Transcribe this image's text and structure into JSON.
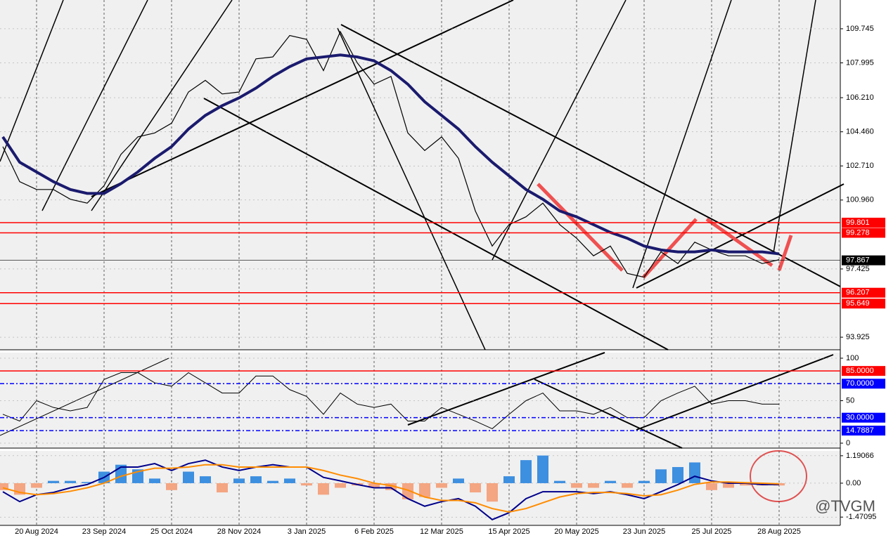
{
  "watermark": "@TVGM",
  "chart_data": [
    {
      "type": "line",
      "categories": [
        null,
        null,
        "20 Aug 2024",
        null,
        null,
        null,
        "23 Sep 2024",
        null,
        null,
        null,
        "25 Oct 2024",
        null,
        null,
        null,
        "28 Nov 2024",
        null,
        null,
        null,
        "3 Jan 2025",
        null,
        null,
        null,
        "6 Feb 2025",
        null,
        null,
        null,
        "12 Mar 2025",
        null,
        null,
        null,
        "15 Apr 2025",
        null,
        null,
        null,
        "20 May 2025",
        null,
        null,
        null,
        "23 Jun 2025",
        null,
        null,
        null,
        "25 Jul 2025",
        null,
        null,
        null,
        "28 Aug 2025"
      ],
      "series": [
        {
          "color": "#000000",
          "width": 1.2,
          "values": [
            103.7,
            101.9,
            101.5,
            101.5,
            101.0,
            100.8,
            101.7,
            103.3,
            104.2,
            104.4,
            104.9,
            106.5,
            107.1,
            106.4,
            106.5,
            108.2,
            108.3,
            109.4,
            109.2,
            107.6,
            109.6,
            108.0,
            106.9,
            107.3,
            104.4,
            103.5,
            104.2,
            103.1,
            100.4,
            98.6,
            99.7,
            100.1,
            100.8,
            99.7,
            99.0,
            98.1,
            98.6,
            97.2,
            97.0,
            98.3,
            97.7,
            98.8,
            98.4,
            98.1,
            98.1,
            97.7,
            97.9
          ]
        },
        {
          "color": "#1a1a6e",
          "width": 4,
          "values": [
            104.2,
            102.9,
            102.4,
            101.9,
            101.5,
            101.3,
            101.3,
            101.8,
            102.4,
            103.1,
            103.7,
            104.6,
            105.3,
            105.8,
            106.2,
            106.7,
            107.3,
            107.8,
            108.2,
            108.3,
            108.4,
            108.3,
            108.1,
            107.6,
            106.9,
            106.0,
            105.3,
            104.6,
            103.7,
            102.9,
            102.2,
            101.5,
            101.0,
            100.4,
            100.1,
            99.7,
            99.3,
            99.0,
            98.6,
            98.4,
            98.3,
            98.3,
            98.4,
            98.3,
            98.3,
            98.3,
            98.2
          ]
        }
      ],
      "ylim": [
        93.28,
        111.22
      ],
      "yticks": [
        109.745,
        107.995,
        {
          "value": 106.21,
          "label": "106.210"
        },
        {
          "value": 104.46,
          "label": "104.460"
        },
        {
          "value": 102.71,
          "label": "102.710"
        },
        {
          "value": 100.96,
          "label": "100.960"
        },
        97.425,
        93.925
      ],
      "levels": [
        {
          "value": 99.801,
          "color": "#ff0000"
        },
        {
          "value": 99.278,
          "color": "#ff0000"
        },
        {
          "value": 97.867,
          "color": "#000000"
        },
        {
          "value": 96.207,
          "color": "#ff0000"
        },
        {
          "value": 95.649,
          "color": "#ff0000"
        }
      ],
      "grid": true
    },
    {
      "type": "line",
      "series": [
        {
          "color": "#000000",
          "width": 1,
          "values": [
            34,
            26,
            50,
            42,
            38,
            42,
            75,
            83,
            83,
            71,
            67,
            83,
            71,
            59,
            59,
            79,
            79,
            63,
            55,
            34,
            59,
            46,
            42,
            46,
            26,
            26,
            42,
            34,
            26,
            17,
            34,
            50,
            59,
            38,
            38,
            34,
            42,
            30,
            30,
            50,
            59,
            67,
            46,
            50,
            50,
            46,
            46
          ]
        }
      ],
      "ylim": [
        -5.8,
        106.6
      ],
      "yticks": [
        100,
        50,
        0
      ],
      "levels": [
        {
          "value": 85,
          "label": "85.0000",
          "color": "#ff0000"
        },
        {
          "value": 70,
          "label": "70.0000",
          "color": "#0000ff"
        },
        {
          "value": 30,
          "label": "30.0000",
          "color": "#0000ff"
        },
        {
          "value": 14.7887,
          "color": "#0000ff"
        }
      ],
      "grid": true
    },
    {
      "type": "bar",
      "series": [
        {
          "type": "bar",
          "color": "#3d8fe0",
          "negative_color": "#f4a582",
          "values": [
            -0.3,
            -0.5,
            -0.2,
            0.1,
            0.1,
            0.05,
            0.5,
            0.8,
            0.6,
            0.2,
            -0.3,
            0.5,
            0.3,
            -0.4,
            0.2,
            0.3,
            0.1,
            0.2,
            -0.1,
            -0.5,
            -0.2,
            -0.1,
            -0.2,
            -0.3,
            -0.7,
            -0.6,
            -0.2,
            0.2,
            -0.4,
            -0.8,
            0.3,
            1.0,
            1.2,
            0.1,
            -0.2,
            -0.2,
            0.1,
            -0.2,
            0.1,
            0.6,
            0.7,
            0.9,
            -0.3,
            -0.2,
            -0.1,
            -0.1,
            -0.1
          ]
        },
        {
          "type": "line",
          "color": "#00008b",
          "width": 2,
          "values": [
            -0.37,
            -0.8,
            -0.5,
            -0.4,
            -0.2,
            -0.06,
            0.25,
            0.7,
            0.7,
            0.85,
            0.55,
            0.85,
            1.0,
            0.7,
            0.55,
            0.7,
            0.8,
            0.7,
            0.7,
            0.25,
            0.1,
            -0.06,
            -0.2,
            -0.2,
            -0.67,
            -1.0,
            -0.8,
            -0.67,
            -1.0,
            -1.58,
            -1.28,
            -0.67,
            -0.37,
            -0.37,
            -0.37,
            -0.45,
            -0.37,
            -0.5,
            -0.67,
            -0.37,
            -0.06,
            0.3,
            0.1,
            0,
            0,
            -0.06,
            -0.06
          ]
        },
        {
          "type": "line",
          "color": "#ff8c00",
          "width": 2,
          "values": [
            -0.2,
            -0.4,
            -0.5,
            -0.45,
            -0.35,
            -0.2,
            0,
            0.3,
            0.5,
            0.65,
            0.65,
            0.7,
            0.8,
            0.8,
            0.7,
            0.7,
            0.7,
            0.7,
            0.7,
            0.55,
            0.35,
            0.2,
            0,
            -0.1,
            -0.3,
            -0.6,
            -0.75,
            -0.75,
            -0.85,
            -1.1,
            -1.25,
            -1.1,
            -0.85,
            -0.6,
            -0.45,
            -0.4,
            -0.4,
            -0.45,
            -0.55,
            -0.5,
            -0.3,
            -0.05,
            0.05,
            0.05,
            0.02,
            0,
            -0.03
          ]
        }
      ],
      "ylim": [
        -1.83,
        1.4
      ],
      "yticks": [
        1.19066,
        {
          "value": 0,
          "label": "0.00"
        },
        -1.47095
      ],
      "grid": true
    }
  ]
}
